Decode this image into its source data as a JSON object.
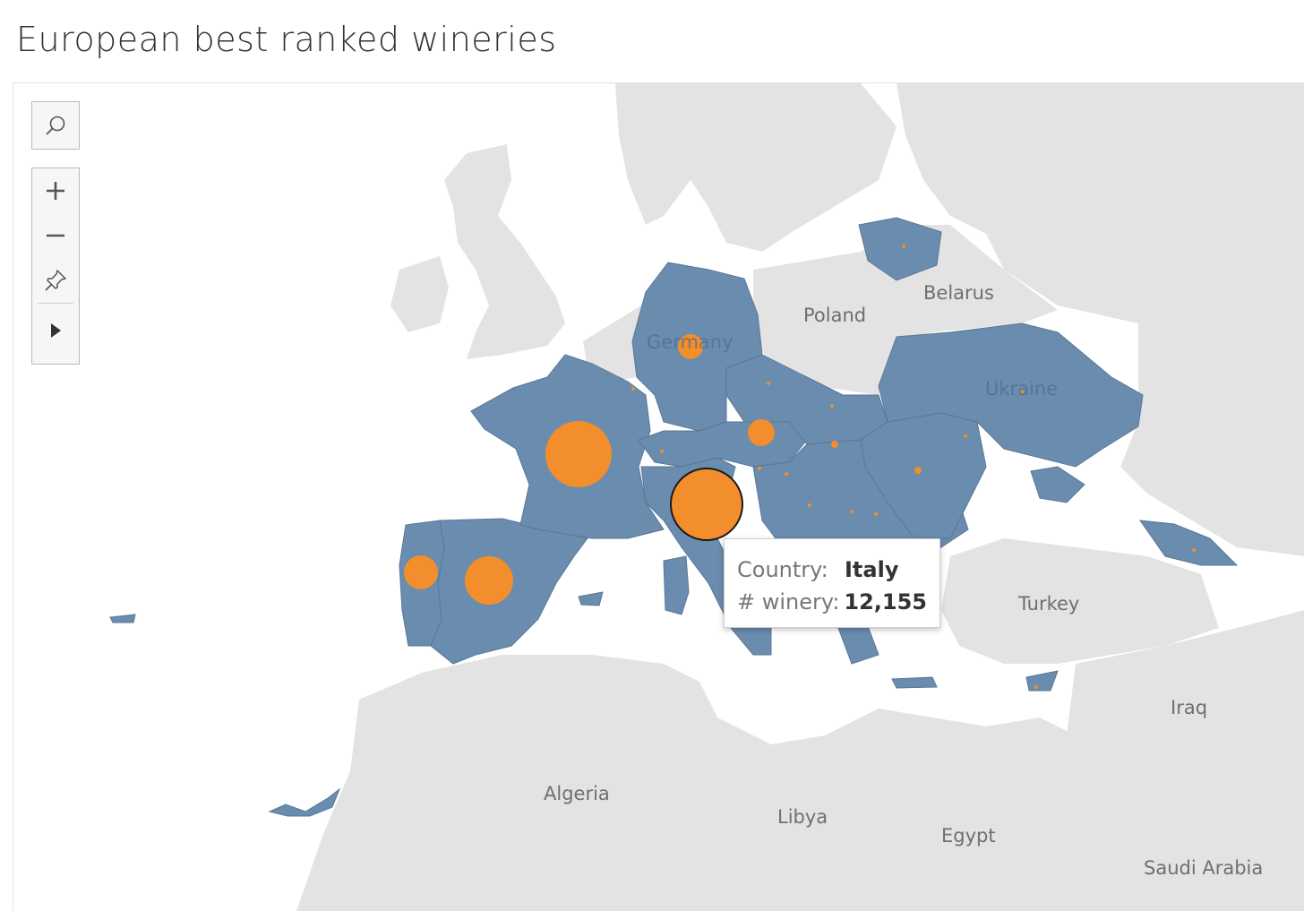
{
  "title": "European best ranked wineries",
  "colors": {
    "land": "#e3e3e3",
    "sea": "#ffffff",
    "highlight_country": "#6a8caf",
    "bubble": "#f28e2b",
    "border": "#ffffff"
  },
  "controls": {
    "search_icon": "search-icon",
    "zoom_in_icon": "plus-icon",
    "zoom_out_icon": "minus-icon",
    "pin_icon": "pin-icon",
    "expand_icon": "play-icon"
  },
  "map_labels": {
    "poland": "Poland",
    "belarus": "Belarus",
    "ukraine": "Ukraine",
    "germany": "Germany",
    "turkey": "Turkey",
    "iraq": "Iraq",
    "algeria": "Algeria",
    "libya": "Libya",
    "egypt": "Egypt",
    "saudi_arabia": "Saudi Arabia"
  },
  "tooltip": {
    "country_label": "Country:",
    "country_value": "Italy",
    "winery_label": "# winery:",
    "winery_value": "12,155"
  },
  "chart_data": {
    "type": "map",
    "title": "European best ranked wineries",
    "measure": "# winery",
    "highlighted": "Italy",
    "points": [
      {
        "country": "Italy",
        "winery": 12155
      },
      {
        "country": "France"
      },
      {
        "country": "Spain"
      },
      {
        "country": "Portugal"
      },
      {
        "country": "Germany"
      },
      {
        "country": "Austria"
      }
    ]
  }
}
